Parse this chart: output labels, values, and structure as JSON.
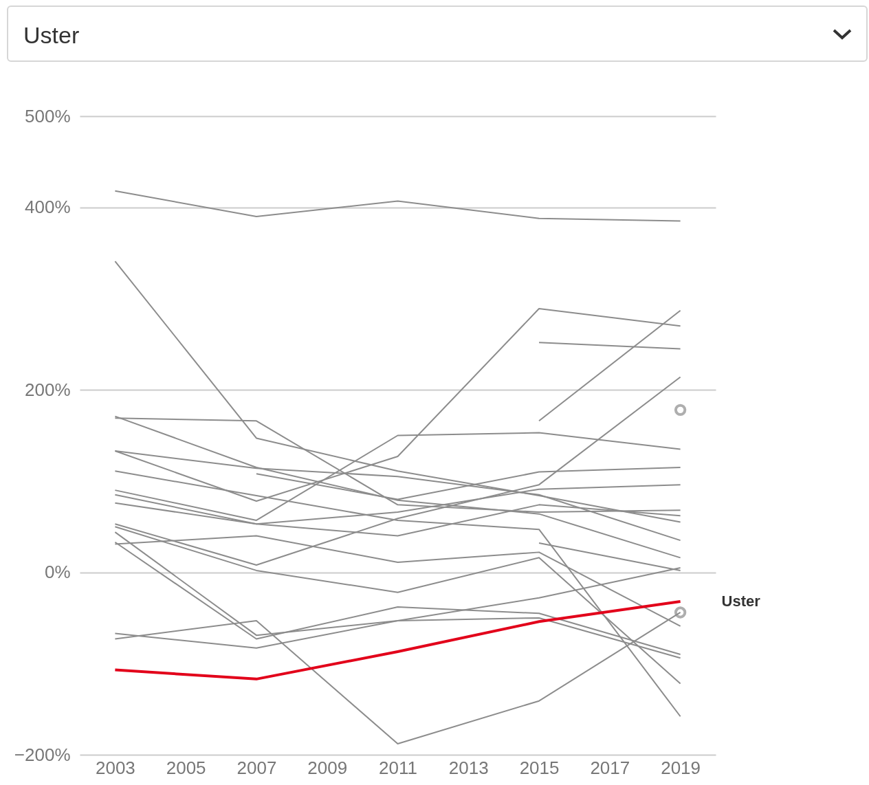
{
  "chart_data": {
    "type": "line",
    "title": "Uster",
    "x": [
      2003,
      2007,
      2011,
      2015,
      2019
    ],
    "xlim": [
      2002,
      2020
    ],
    "xticks": [
      2003,
      2005,
      2007,
      2009,
      2011,
      2013,
      2015,
      2017,
      2019
    ],
    "ylim": [
      -200,
      500
    ],
    "yticks": [
      {
        "value": -200,
        "label": "−200%"
      },
      {
        "value": 0,
        "label": "0%"
      },
      {
        "value": 200,
        "label": "200%"
      },
      {
        "value": 400,
        "label": "400%"
      },
      {
        "value": 500,
        "label": "500%"
      }
    ],
    "grid": "y",
    "marker": "none",
    "series": [
      {
        "color": "#8c8c8c",
        "values": [
          418,
          390,
          407,
          388,
          385
        ]
      },
      {
        "color": "#8c8c8c",
        "values": [
          341,
          147,
          111,
          84,
          55
        ]
      },
      {
        "color": "#8c8c8c",
        "values": [
          169,
          166,
          74,
          66,
          68
        ]
      },
      {
        "color": "#8c8c8c",
        "values": [
          171,
          115,
          79,
          64,
          16
        ]
      },
      {
        "color": "#8c8c8c",
        "values": [
          133,
          78,
          127,
          289,
          270
        ]
      },
      {
        "color": "#8c8c8c",
        "values": [
          133,
          114,
          105,
          85,
          35
        ]
      },
      {
        "color": "#8c8c8c",
        "values": [
          111,
          84,
          57,
          47,
          -158
        ]
      },
      {
        "color": "#8c8c8c",
        "values": [
          90,
          57,
          150,
          153,
          135
        ]
      },
      {
        "color": "#8c8c8c",
        "values": [
          85,
          53,
          66,
          91,
          96
        ]
      },
      {
        "color": "#8c8c8c",
        "values": [
          76,
          53,
          40,
          74,
          62
        ]
      },
      {
        "color": "#8c8c8c",
        "values": [
          null,
          108,
          80,
          110,
          115
        ]
      },
      {
        "color": "#8c8c8c",
        "values": [
          53,
          8,
          59,
          96,
          214
        ]
      },
      {
        "color": "#8c8c8c",
        "values": [
          50,
          2,
          -22,
          16,
          -122
        ]
      },
      {
        "color": "#8c8c8c",
        "values": [
          31,
          40,
          11,
          22,
          -59
        ]
      },
      {
        "color": "#8c8c8c",
        "values": [
          44,
          -69,
          -53,
          -50,
          -94
        ]
      },
      {
        "color": "#8c8c8c",
        "values": [
          33,
          -73,
          -38,
          -45,
          -90
        ]
      },
      {
        "color": "#8c8c8c",
        "values": [
          -67,
          -83,
          -53,
          -28,
          5
        ]
      },
      {
        "color": "#8c8c8c",
        "values": [
          -73,
          -53,
          -188,
          -141,
          -44
        ]
      },
      {
        "color": "#8c8c8c",
        "values": [
          null,
          null,
          null,
          252,
          245
        ]
      },
      {
        "color": "#8c8c8c",
        "values": [
          null,
          null,
          null,
          166,
          287
        ]
      },
      {
        "color": "#8c8c8c",
        "values": [
          null,
          null,
          null,
          32,
          2
        ]
      },
      {
        "type": "scatter",
        "marker": "circle",
        "color": "#8c8c8c",
        "x": [
          2019
        ],
        "values": [
          178
        ]
      },
      {
        "type": "scatter",
        "marker": "circle",
        "color": "#8c8c8c",
        "x": [
          2019
        ],
        "values": [
          -44
        ]
      },
      {
        "name": "Uster",
        "color": "#e2001a",
        "values": [
          -107,
          -117,
          -87,
          -54,
          -32
        ]
      }
    ]
  }
}
